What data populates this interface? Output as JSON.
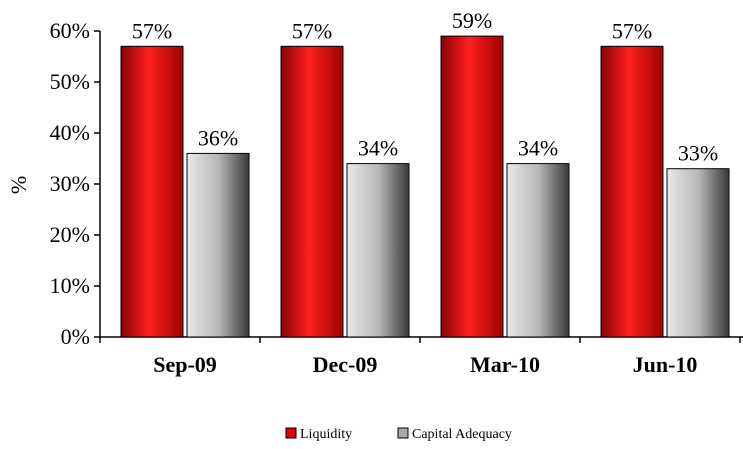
{
  "chart_data": {
    "type": "bar",
    "categories": [
      "Sep-09",
      "Dec-09",
      "Mar-10",
      "Jun-10"
    ],
    "series": [
      {
        "name": "Liquidity",
        "values": [
          57,
          57,
          59,
          57
        ],
        "labels": [
          "57%",
          "57%",
          "59%",
          "57%"
        ],
        "color": "#e00000"
      },
      {
        "name": "Capital Adequacy",
        "values": [
          36,
          34,
          34,
          33
        ],
        "labels": [
          "36%",
          "34%",
          "34%",
          "33%"
        ],
        "color": "#a9a9a9"
      }
    ],
    "ylabel": "%",
    "ylim": [
      0,
      60
    ],
    "yticks": [
      0,
      10,
      20,
      30,
      40,
      50,
      60
    ],
    "ytick_labels": [
      "0%",
      "10%",
      "20%",
      "30%",
      "40%",
      "50%",
      "60%"
    ],
    "legend_position": "bottom-center",
    "grid": false
  }
}
